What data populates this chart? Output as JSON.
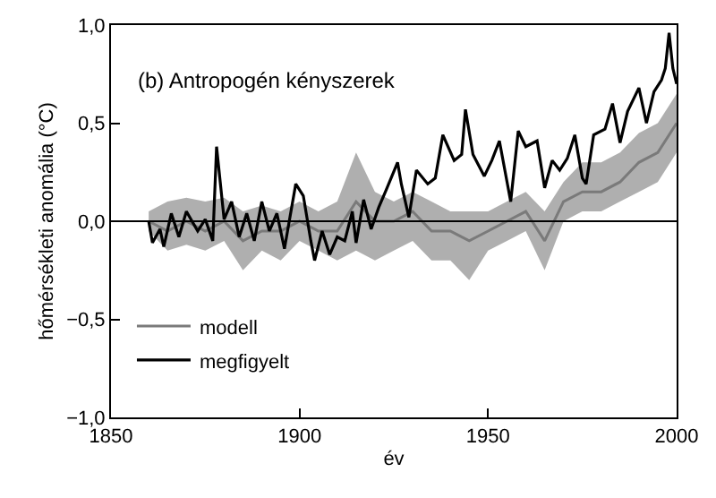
{
  "chart_data": {
    "type": "line",
    "title": "(b) Antropogén kényszerek",
    "xlabel": "év",
    "ylabel": "hőmérsékleti anomália (°C)",
    "xlim": [
      1850,
      2000
    ],
    "xticks": [
      1850,
      1900,
      1950,
      2000
    ],
    "ylim": [
      -1.0,
      1.0
    ],
    "yticks": [
      {
        "value": -1.0,
        "label": "−1,0"
      },
      {
        "value": -0.5,
        "label": "−0,5"
      },
      {
        "value": 0.0,
        "label": "0,0"
      },
      {
        "value": 0.5,
        "label": "0,5"
      },
      {
        "value": 1.0,
        "label": "1,0"
      }
    ],
    "legend": "bottom left",
    "ref_lines": [
      {
        "axis": "y",
        "value": 0,
        "color": "#000000"
      }
    ],
    "series": [
      {
        "name": "modell",
        "color": "#7a7a7a",
        "x": [
          1860,
          1865,
          1870,
          1875,
          1880,
          1885,
          1890,
          1895,
          1900,
          1905,
          1910,
          1915,
          1920,
          1925,
          1930,
          1935,
          1940,
          1945,
          1950,
          1955,
          1960,
          1965,
          1970,
          1975,
          1980,
          1985,
          1990,
          1995,
          2000
        ],
        "lower": [
          -0.05,
          -0.15,
          -0.12,
          -0.15,
          -0.1,
          -0.25,
          -0.15,
          -0.2,
          -0.1,
          -0.15,
          -0.2,
          -0.15,
          -0.2,
          -0.15,
          -0.1,
          -0.2,
          -0.2,
          -0.3,
          -0.15,
          -0.1,
          -0.05,
          -0.25,
          0.0,
          0.05,
          0.05,
          0.1,
          0.15,
          0.2,
          0.35
        ],
        "values": [
          0.0,
          -0.05,
          0.0,
          -0.05,
          0.0,
          -0.1,
          -0.05,
          -0.05,
          0.0,
          -0.05,
          -0.05,
          0.1,
          0.0,
          0.0,
          0.05,
          -0.05,
          -0.05,
          -0.1,
          -0.05,
          0.0,
          0.05,
          -0.1,
          0.1,
          0.15,
          0.15,
          0.2,
          0.3,
          0.35,
          0.5
        ],
        "upper": [
          0.05,
          0.1,
          0.12,
          0.1,
          0.12,
          0.05,
          0.08,
          0.05,
          0.1,
          0.05,
          0.1,
          0.35,
          0.15,
          0.1,
          0.15,
          0.1,
          0.05,
          0.05,
          0.05,
          0.1,
          0.15,
          0.05,
          0.2,
          0.3,
          0.3,
          0.35,
          0.45,
          0.5,
          0.65
        ]
      },
      {
        "name": "megfigyelt",
        "type": "line",
        "color": "#000000",
        "x": [
          1860,
          1861,
          1863,
          1864,
          1866,
          1868,
          1870,
          1873,
          1875,
          1877,
          1878,
          1880,
          1882,
          1884,
          1886,
          1888,
          1890,
          1892,
          1894,
          1896,
          1899,
          1901,
          1903,
          1904,
          1906,
          1908,
          1910,
          1912,
          1914,
          1915,
          1917,
          1919,
          1921,
          1923,
          1926,
          1927,
          1929,
          1931,
          1934,
          1936,
          1938,
          1941,
          1943,
          1944,
          1946,
          1949,
          1951,
          1953,
          1956,
          1958,
          1960,
          1963,
          1965,
          1967,
          1969,
          1971,
          1973,
          1975,
          1976,
          1978,
          1981,
          1983,
          1985,
          1987,
          1990,
          1992,
          1994,
          1996,
          1997,
          1998,
          1999,
          2000
        ],
        "values": [
          0.0,
          -0.11,
          -0.04,
          -0.13,
          0.04,
          -0.08,
          0.05,
          -0.05,
          0.01,
          -0.1,
          0.38,
          0.01,
          0.1,
          -0.08,
          0.04,
          -0.1,
          0.1,
          -0.05,
          0.04,
          -0.14,
          0.19,
          0.13,
          -0.1,
          -0.2,
          -0.05,
          -0.17,
          -0.08,
          -0.1,
          0.05,
          -0.11,
          0.11,
          -0.04,
          0.07,
          0.16,
          0.3,
          0.19,
          0.02,
          0.26,
          0.19,
          0.22,
          0.44,
          0.31,
          0.34,
          0.57,
          0.34,
          0.23,
          0.31,
          0.41,
          0.1,
          0.46,
          0.38,
          0.41,
          0.17,
          0.31,
          0.26,
          0.32,
          0.44,
          0.22,
          0.19,
          0.44,
          0.47,
          0.6,
          0.4,
          0.56,
          0.68,
          0.5,
          0.66,
          0.72,
          0.78,
          0.96,
          0.78,
          0.7
        ]
      }
    ]
  }
}
